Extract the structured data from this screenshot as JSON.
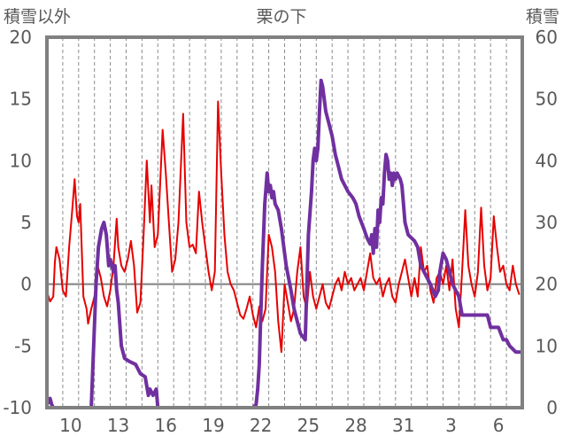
{
  "chart_data": {
    "type": "line",
    "title": "栗の下",
    "y_left_label": "積雪以外",
    "y_right_label": "積雪",
    "y_left_lim": [
      -10,
      20
    ],
    "y_left_ticks": [
      -10,
      -5,
      0,
      5,
      10,
      15,
      20
    ],
    "y_right_lim": [
      0,
      60
    ],
    "y_right_ticks": [
      0,
      10,
      20,
      30,
      40,
      50,
      60
    ],
    "x_tick_labels": [
      "10",
      "13",
      "16",
      "19",
      "22",
      "25",
      "28",
      "31",
      "3",
      "6"
    ],
    "x_day_range": [
      0,
      30
    ],
    "x_tick_day_positions": [
      1.5,
      4.5,
      7.5,
      10.5,
      13.5,
      16.5,
      19.5,
      22.5,
      25.5,
      28.5
    ],
    "grid": "vertical-dashed",
    "series": [
      {
        "color": "#e60000",
        "axis": "left",
        "points": [
          [
            0.0,
            -0.6
          ],
          [
            0.2,
            -1.4
          ],
          [
            0.4,
            -1.0
          ],
          [
            0.5,
            1.8
          ],
          [
            0.6,
            3.0
          ],
          [
            0.8,
            2.0
          ],
          [
            1.0,
            -0.5
          ],
          [
            1.2,
            -1.0
          ],
          [
            1.4,
            3.0
          ],
          [
            1.6,
            6.0
          ],
          [
            1.75,
            8.5
          ],
          [
            1.9,
            5.5
          ],
          [
            2.0,
            5.0
          ],
          [
            2.1,
            6.5
          ],
          [
            2.3,
            -1.0
          ],
          [
            2.5,
            -2.0
          ],
          [
            2.6,
            -3.2
          ],
          [
            2.8,
            -2.0
          ],
          [
            3.0,
            -1.0
          ],
          [
            3.2,
            1.5
          ],
          [
            3.4,
            0.5
          ],
          [
            3.6,
            -1.0
          ],
          [
            3.8,
            -1.8
          ],
          [
            4.0,
            -0.5
          ],
          [
            4.2,
            1.5
          ],
          [
            4.4,
            5.3
          ],
          [
            4.5,
            3.0
          ],
          [
            4.7,
            1.5
          ],
          [
            4.9,
            1.0
          ],
          [
            5.1,
            2.0
          ],
          [
            5.3,
            3.5
          ],
          [
            5.5,
            1.5
          ],
          [
            5.7,
            -2.3
          ],
          [
            5.9,
            -1.5
          ],
          [
            6.1,
            4.0
          ],
          [
            6.3,
            10.0
          ],
          [
            6.5,
            5.0
          ],
          [
            6.6,
            8.0
          ],
          [
            6.8,
            3.0
          ],
          [
            7.0,
            4.0
          ],
          [
            7.3,
            12.5
          ],
          [
            7.5,
            9.0
          ],
          [
            7.7,
            5.0
          ],
          [
            7.9,
            1.0
          ],
          [
            8.1,
            2.0
          ],
          [
            8.3,
            5.0
          ],
          [
            8.6,
            13.8
          ],
          [
            8.8,
            5.0
          ],
          [
            9.0,
            3.0
          ],
          [
            9.2,
            3.2
          ],
          [
            9.4,
            2.5
          ],
          [
            9.6,
            7.5
          ],
          [
            9.8,
            5.0
          ],
          [
            10.0,
            3.0
          ],
          [
            10.2,
            1.0
          ],
          [
            10.4,
            -0.5
          ],
          [
            10.6,
            1.0
          ],
          [
            10.8,
            14.8
          ],
          [
            11.0,
            9.0
          ],
          [
            11.2,
            4.0
          ],
          [
            11.4,
            1.0
          ],
          [
            11.6,
            0.0
          ],
          [
            11.8,
            -0.5
          ],
          [
            12.0,
            -1.5
          ],
          [
            12.2,
            -2.5
          ],
          [
            12.4,
            -2.8
          ],
          [
            12.6,
            -2.0
          ],
          [
            12.8,
            -1.0
          ],
          [
            13.0,
            -2.5
          ],
          [
            13.2,
            -3.5
          ],
          [
            13.4,
            -1.8
          ],
          [
            13.6,
            -3.0
          ],
          [
            13.8,
            -2.0
          ],
          [
            14.0,
            4.0
          ],
          [
            14.2,
            3.0
          ],
          [
            14.4,
            1.0
          ],
          [
            14.6,
            -3.0
          ],
          [
            14.8,
            -5.5
          ],
          [
            15.0,
            0.0
          ],
          [
            15.2,
            -1.5
          ],
          [
            15.4,
            -3.0
          ],
          [
            15.6,
            -2.0
          ],
          [
            15.8,
            1.0
          ],
          [
            16.0,
            3.0
          ],
          [
            16.2,
            -1.0
          ],
          [
            16.4,
            -2.0
          ],
          [
            16.6,
            1.0
          ],
          [
            16.8,
            -1.0
          ],
          [
            17.0,
            -2.0
          ],
          [
            17.2,
            -1.0
          ],
          [
            17.4,
            0.0
          ],
          [
            17.6,
            -1.5
          ],
          [
            17.8,
            -2.0
          ],
          [
            18.0,
            -1.0
          ],
          [
            18.2,
            0.0
          ],
          [
            18.4,
            0.5
          ],
          [
            18.6,
            -0.5
          ],
          [
            18.8,
            1.0
          ],
          [
            19.0,
            0.0
          ],
          [
            19.2,
            0.5
          ],
          [
            19.4,
            -0.5
          ],
          [
            19.6,
            0.0
          ],
          [
            19.8,
            0.5
          ],
          [
            20.0,
            -0.5
          ],
          [
            20.2,
            1.0
          ],
          [
            20.4,
            2.5
          ],
          [
            20.6,
            0.5
          ],
          [
            20.8,
            0.0
          ],
          [
            21.0,
            0.5
          ],
          [
            21.2,
            -1.0
          ],
          [
            21.4,
            0.0
          ],
          [
            21.6,
            0.5
          ],
          [
            21.8,
            -1.0
          ],
          [
            22.0,
            -1.5
          ],
          [
            22.2,
            0.0
          ],
          [
            22.4,
            1.0
          ],
          [
            22.6,
            2.0
          ],
          [
            22.8,
            0.5
          ],
          [
            23.0,
            -1.0
          ],
          [
            23.2,
            0.5
          ],
          [
            23.4,
            -1.0
          ],
          [
            23.6,
            3.0
          ],
          [
            23.8,
            1.0
          ],
          [
            24.0,
            1.5
          ],
          [
            24.2,
            -0.5
          ],
          [
            24.4,
            -1.5
          ],
          [
            24.6,
            0.5
          ],
          [
            24.8,
            1.0
          ],
          [
            25.0,
            0.0
          ],
          [
            25.2,
            1.5
          ],
          [
            25.4,
            -0.5
          ],
          [
            25.6,
            2.0
          ],
          [
            25.8,
            -2.0
          ],
          [
            26.0,
            -3.5
          ],
          [
            26.2,
            1.0
          ],
          [
            26.4,
            6.0
          ],
          [
            26.6,
            1.5
          ],
          [
            26.8,
            0.0
          ],
          [
            27.0,
            -1.0
          ],
          [
            27.2,
            1.0
          ],
          [
            27.4,
            6.2
          ],
          [
            27.6,
            1.5
          ],
          [
            27.8,
            -0.5
          ],
          [
            28.0,
            0.5
          ],
          [
            28.2,
            5.5
          ],
          [
            28.4,
            3.0
          ],
          [
            28.6,
            1.0
          ],
          [
            28.8,
            1.5
          ],
          [
            29.0,
            0.0
          ],
          [
            29.2,
            -0.5
          ],
          [
            29.4,
            1.5
          ],
          [
            29.6,
            0.0
          ],
          [
            29.8,
            -0.8
          ]
        ]
      },
      {
        "color": "#7030a0",
        "axis": "right",
        "points": [
          [
            0.0,
            1.5
          ],
          [
            0.1,
            0.8
          ],
          [
            0.2,
            1.5
          ],
          [
            0.3,
            0.5
          ],
          [
            0.4,
            0.0
          ],
          [
            1.0,
            0.0
          ],
          [
            2.5,
            0.0
          ],
          [
            2.8,
            0.0
          ],
          [
            2.95,
            10.0
          ],
          [
            3.1,
            20.0
          ],
          [
            3.25,
            26.0
          ],
          [
            3.45,
            29.0
          ],
          [
            3.6,
            30.0
          ],
          [
            3.75,
            28.0
          ],
          [
            3.9,
            23.0
          ],
          [
            4.0,
            24.0
          ],
          [
            4.2,
            22.0
          ],
          [
            4.3,
            23.0
          ],
          [
            4.4,
            19.0
          ],
          [
            4.5,
            17.0
          ],
          [
            4.7,
            10.0
          ],
          [
            4.9,
            8.0
          ],
          [
            5.2,
            7.5
          ],
          [
            5.6,
            7.0
          ],
          [
            5.9,
            5.5
          ],
          [
            6.2,
            5.0
          ],
          [
            6.4,
            2.0
          ],
          [
            6.5,
            3.0
          ],
          [
            6.7,
            2.0
          ],
          [
            6.9,
            3.0
          ],
          [
            7.0,
            0.0
          ],
          [
            9.0,
            0.0
          ],
          [
            11.0,
            0.0
          ],
          [
            13.0,
            0.0
          ],
          [
            13.2,
            0.5
          ],
          [
            13.3,
            3.0
          ],
          [
            13.4,
            7.0
          ],
          [
            13.5,
            15.0
          ],
          [
            13.6,
            23.0
          ],
          [
            13.75,
            33.0
          ],
          [
            13.9,
            38.0
          ],
          [
            14.0,
            35.0
          ],
          [
            14.1,
            36.0
          ],
          [
            14.2,
            34.0
          ],
          [
            14.3,
            35.0
          ],
          [
            14.4,
            33.0
          ],
          [
            14.6,
            32.0
          ],
          [
            14.8,
            29.0
          ],
          [
            15.0,
            25.0
          ],
          [
            15.1,
            23.0
          ],
          [
            15.4,
            19.0
          ],
          [
            15.6,
            16.0
          ],
          [
            15.8,
            14.0
          ],
          [
            16.0,
            12.0
          ],
          [
            16.3,
            11.0
          ],
          [
            16.5,
            28.0
          ],
          [
            16.7,
            35.0
          ],
          [
            16.8,
            40.0
          ],
          [
            16.9,
            42.0
          ],
          [
            17.0,
            40.0
          ],
          [
            17.1,
            42.0
          ],
          [
            17.2,
            48.0
          ],
          [
            17.3,
            53.0
          ],
          [
            17.4,
            52.0
          ],
          [
            17.6,
            48.0
          ],
          [
            17.8,
            46.0
          ],
          [
            18.0,
            44.0
          ],
          [
            18.2,
            41.0
          ],
          [
            18.4,
            39.0
          ],
          [
            18.6,
            37.0
          ],
          [
            18.8,
            36.0
          ],
          [
            19.0,
            35.0
          ],
          [
            19.3,
            34.0
          ],
          [
            19.5,
            33.0
          ],
          [
            19.7,
            31.0
          ],
          [
            20.0,
            29.0
          ],
          [
            20.2,
            27.5
          ],
          [
            20.4,
            26.5
          ],
          [
            20.5,
            28.0
          ],
          [
            20.6,
            25.0
          ],
          [
            20.7,
            29.0
          ],
          [
            20.8,
            26.0
          ],
          [
            20.9,
            32.0
          ],
          [
            21.0,
            30.0
          ],
          [
            21.1,
            34.0
          ],
          [
            21.2,
            33.0
          ],
          [
            21.3,
            38.0
          ],
          [
            21.4,
            41.0
          ],
          [
            21.5,
            40.0
          ],
          [
            21.6,
            37.0
          ],
          [
            21.7,
            38.0
          ],
          [
            21.8,
            36.0
          ],
          [
            21.9,
            38.0
          ],
          [
            22.0,
            37.0
          ],
          [
            22.1,
            38.0
          ],
          [
            22.3,
            37.0
          ],
          [
            22.4,
            36.0
          ],
          [
            22.5,
            33.0
          ],
          [
            22.6,
            30.0
          ],
          [
            22.8,
            28.0
          ],
          [
            23.0,
            27.5
          ],
          [
            23.2,
            27.0
          ],
          [
            23.4,
            26.0
          ],
          [
            23.6,
            23.0
          ],
          [
            23.8,
            22.0
          ],
          [
            24.0,
            21.0
          ],
          [
            24.2,
            20.0
          ],
          [
            24.5,
            18.0
          ],
          [
            24.7,
            19.0
          ],
          [
            24.8,
            22.0
          ],
          [
            25.0,
            25.0
          ],
          [
            25.2,
            24.0
          ],
          [
            25.4,
            22.0
          ],
          [
            25.6,
            20.0
          ],
          [
            25.8,
            19.0
          ],
          [
            26.0,
            18.0
          ],
          [
            26.2,
            15.0
          ],
          [
            26.5,
            15.0
          ],
          [
            27.0,
            15.0
          ],
          [
            27.5,
            15.0
          ],
          [
            27.8,
            15.0
          ],
          [
            28.0,
            13.0
          ],
          [
            28.5,
            13.0
          ],
          [
            28.8,
            11.0
          ],
          [
            29.0,
            11.0
          ],
          [
            29.2,
            10.0
          ],
          [
            29.6,
            9.0
          ],
          [
            30.0,
            9.0
          ]
        ]
      }
    ]
  }
}
